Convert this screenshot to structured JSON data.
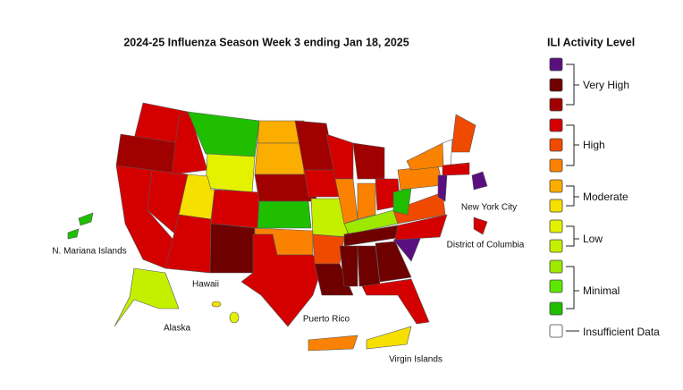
{
  "map": {
    "title": "2024-25 Influenza Season Week 3 ending Jan 18, 2025",
    "regions": [
      "N. Mariana Islands",
      "Hawaii",
      "Alaska",
      "Puerto Rico",
      "Virgin Islands",
      "New York City",
      "District of Columbia"
    ]
  },
  "legend": {
    "title": "ILI Activity Level",
    "levels": [
      "Very High",
      "High",
      "Moderate",
      "Low",
      "Minimal",
      "Insufficient Data"
    ]
  }
}
